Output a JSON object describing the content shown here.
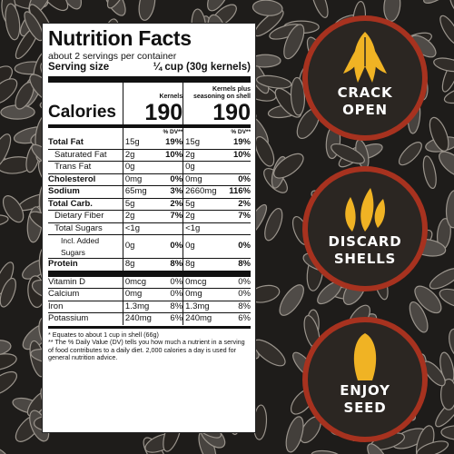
{
  "colors": {
    "badge_fill": "#2b2622",
    "badge_ring": "#a7321f",
    "seed_yellow": "#f0b324",
    "label_bg": "#ffffff"
  },
  "label": {
    "title": "Nutrition Facts",
    "servings": "about 2 servings per container",
    "serving_size_label": "Serving size",
    "serving_size_value": "¼ cup (30g kernels)",
    "col1_header": "Kernels",
    "col2_header": "Kernels plus seasoning on shell",
    "calories_label": "Calories",
    "calories_col1": "190",
    "calories_col2": "190",
    "dv_header": "% DV**",
    "rows": [
      {
        "name": "Total Fat",
        "a": "15g",
        "b": "19%",
        "c": "15g",
        "d": "19%"
      },
      {
        "name": "Saturated Fat",
        "a": "2g",
        "b": "10%",
        "c": "2g",
        "d": "10%"
      },
      {
        "name": "Trans Fat",
        "a": "0g",
        "b": "",
        "c": "0g",
        "d": ""
      },
      {
        "name": "Cholesterol",
        "a": "0mg",
        "b": "0%",
        "c": "0mg",
        "d": "0%"
      },
      {
        "name": "Sodium",
        "a": "65mg",
        "b": "3%",
        "c": "2660mg",
        "d": "116%"
      },
      {
        "name": "Total Carb.",
        "a": "5g",
        "b": "2%",
        "c": "5g",
        "d": "2%"
      },
      {
        "name": "Dietary Fiber",
        "a": "2g",
        "b": "7%",
        "c": "2g",
        "d": "7%"
      },
      {
        "name": "Total Sugars",
        "a": "<1g",
        "b": "",
        "c": "<1g",
        "d": ""
      },
      {
        "name": "Incl. Added Sugars",
        "a": "0g",
        "b": "0%",
        "c": "0g",
        "d": "0%"
      },
      {
        "name": "Protein",
        "a": "8g",
        "b": "8%",
        "c": "8g",
        "d": "8%"
      },
      {
        "name": "Vitamin D",
        "a": "0mcg",
        "b": "0%",
        "c": "0mcg",
        "d": "0%"
      },
      {
        "name": "Calcium",
        "a": "0mg",
        "b": "0%",
        "c": "0mg",
        "d": "0%"
      },
      {
        "name": "Iron",
        "a": "1.3mg",
        "b": "8%",
        "c": "1.3mg",
        "d": "8%"
      },
      {
        "name": "Potassium",
        "a": "240mg",
        "b": "6%",
        "c": "240mg",
        "d": "6%"
      }
    ],
    "footnote1": "* Equates to about 1 cup in shell (66g)",
    "footnote2": "** The % Daily Value (DV) tells you how much a nutrient in a serving of food contributes to a daily diet. 2,000 calories a day is used for general nutrition advice."
  },
  "badges": [
    {
      "icon": "cracked-seed-icon",
      "line1": "CRACK",
      "line2": "OPEN"
    },
    {
      "icon": "kernels-icon",
      "line1": "DISCARD",
      "line2": "SHELLS"
    },
    {
      "icon": "seed-icon",
      "line1": "ENJOY",
      "line2": "SEED"
    }
  ]
}
